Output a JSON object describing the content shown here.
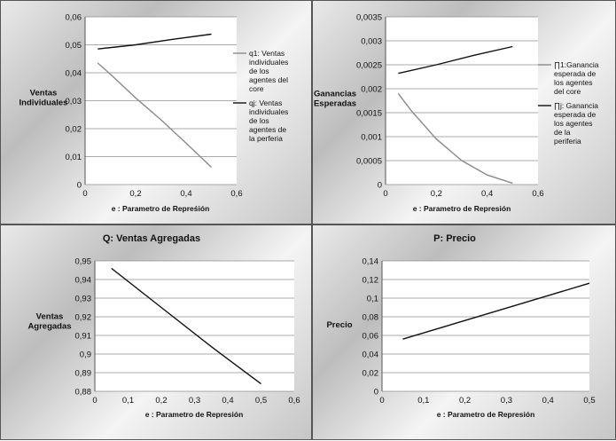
{
  "chart_data": [
    {
      "type": "line",
      "title": "",
      "xlabel": "e : Parametro de Repreśión",
      "ylabel": [
        "Ventas",
        "Individuales"
      ],
      "xlim": [
        0,
        0.6
      ],
      "ylim": [
        0,
        0.06
      ],
      "xticks": [
        "0",
        "0,2",
        "0,4",
        "0,6"
      ],
      "xtick_values": [
        0,
        0.2,
        0.4,
        0.6
      ],
      "yticks": [
        "0",
        "0,01",
        "0,02",
        "0,03",
        "0,04",
        "0,05",
        "0,06"
      ],
      "ytick_values": [
        0,
        0.01,
        0.02,
        0.03,
        0.04,
        0.05,
        0.06
      ],
      "series": [
        {
          "name": "q1: Ventas individuales de los agentes del core",
          "legend_lines": [
            "q1: Ventas",
            "individuales",
            "de los",
            "agentes del",
            "core"
          ],
          "color": "#8a8a8a",
          "x": [
            0.05,
            0.1,
            0.2,
            0.3,
            0.4,
            0.5
          ],
          "values": [
            0.0435,
            0.0395,
            0.031,
            0.0232,
            0.0148,
            0.0062
          ]
        },
        {
          "name": "qj: Ventas individuales de los agentes de la perferia",
          "legend_lines": [
            "qj: Ventas",
            "individuales",
            "de los",
            "agentes de",
            "la perferia"
          ],
          "color": "#111111",
          "x": [
            0.05,
            0.2,
            0.35,
            0.5
          ],
          "values": [
            0.0485,
            0.05,
            0.052,
            0.0538
          ]
        }
      ],
      "legend": "right"
    },
    {
      "type": "line",
      "title": "",
      "xlabel": "e : Parametro de Represión",
      "ylabel": [
        "Ganancias",
        "Esperadas"
      ],
      "xlim": [
        0,
        0.6
      ],
      "ylim": [
        0,
        0.0035
      ],
      "xticks": [
        "0",
        "0,2",
        "0,4",
        "0,6"
      ],
      "xtick_values": [
        0,
        0.2,
        0.4,
        0.6
      ],
      "yticks": [
        "0",
        "0,0005",
        "0,001",
        "0,0015",
        "0,002",
        "0,0025",
        "0,003",
        "0,0035"
      ],
      "ytick_values": [
        0,
        0.0005,
        0.001,
        0.0015,
        0.002,
        0.0025,
        0.003,
        0.0035
      ],
      "series": [
        {
          "name": "∏1:Ganancia esperada de los agentes del core",
          "legend_lines": [
            "∏1:Ganancia",
            "esperada de",
            "los agentes",
            "del core"
          ],
          "color": "#8a8a8a",
          "x": [
            0.05,
            0.1,
            0.2,
            0.3,
            0.4,
            0.5
          ],
          "values": [
            0.0019,
            0.00155,
            0.00095,
            0.0005,
            0.0002,
            3e-05
          ]
        },
        {
          "name": "∏j: Ganancia esperada de los agentes de la periferia",
          "legend_lines": [
            "∏j: Ganancia",
            "esperada de",
            "los agentes",
            "de la",
            "periferia"
          ],
          "color": "#111111",
          "x": [
            0.05,
            0.2,
            0.35,
            0.5
          ],
          "values": [
            0.00232,
            0.0025,
            0.0027,
            0.00288
          ]
        }
      ],
      "legend": "right"
    },
    {
      "type": "line",
      "title": "Q: Ventas Agregadas",
      "xlabel": "e : Parametro de Represión",
      "ylabel": [
        "Ventas",
        "Agregadas"
      ],
      "xlim": [
        0,
        0.6
      ],
      "ylim": [
        0.88,
        0.95
      ],
      "xticks": [
        "0",
        "0,1",
        "0,2",
        "0,3",
        "0,4",
        "0,5",
        "0,6"
      ],
      "xtick_values": [
        0,
        0.1,
        0.2,
        0.3,
        0.4,
        0.5,
        0.6
      ],
      "yticks": [
        "0,88",
        "0,89",
        "0,9",
        "0,91",
        "0,92",
        "0,93",
        "0,94",
        "0,95"
      ],
      "ytick_values": [
        0.88,
        0.89,
        0.9,
        0.91,
        0.92,
        0.93,
        0.94,
        0.95
      ],
      "series": [
        {
          "name": "Q",
          "color": "#111111",
          "x": [
            0.05,
            0.2,
            0.35,
            0.5
          ],
          "values": [
            0.946,
            0.925,
            0.904,
            0.884
          ]
        }
      ]
    },
    {
      "type": "line",
      "title": "P: Precio",
      "xlabel": "e : Parametro de Represión",
      "ylabel": [
        "Precio"
      ],
      "xlim": [
        0,
        0.5
      ],
      "ylim": [
        0,
        0.14
      ],
      "xticks": [
        "0",
        "0,1",
        "0,2",
        "0,3",
        "0,4",
        "0,5"
      ],
      "xtick_values": [
        0,
        0.1,
        0.2,
        0.3,
        0.4,
        0.5
      ],
      "yticks": [
        "0",
        "0,02",
        "0,04",
        "0,06",
        "0,08",
        "0,1",
        "0,12",
        "0,14"
      ],
      "ytick_values": [
        0,
        0.02,
        0.04,
        0.06,
        0.08,
        0.1,
        0.12,
        0.14
      ],
      "series": [
        {
          "name": "P",
          "color": "#111111",
          "x": [
            0.05,
            0.2,
            0.35,
            0.5
          ],
          "values": [
            0.056,
            0.076,
            0.096,
            0.116
          ]
        }
      ]
    }
  ]
}
